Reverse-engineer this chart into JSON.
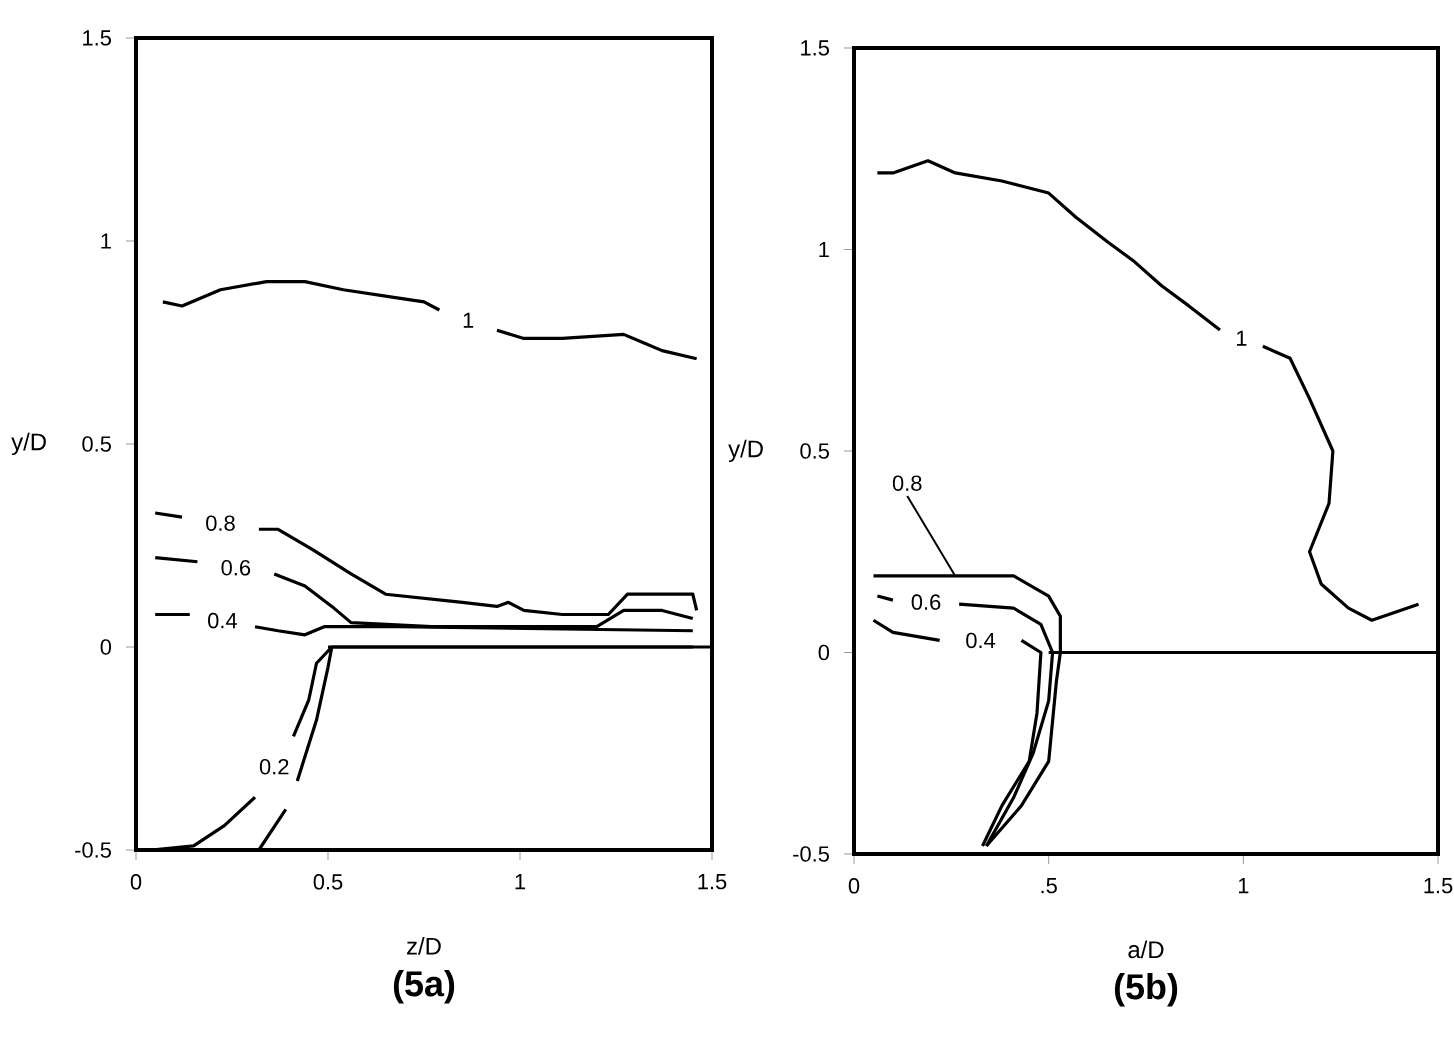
{
  "chart_data": [
    {
      "type": "line",
      "title": "(5a)",
      "xlabel": "z/D",
      "ylabel": "y/D",
      "xlim": [
        0,
        1.5
      ],
      "ylim": [
        -0.5,
        1.5
      ],
      "xticks": [
        0,
        0.5,
        1,
        1.5
      ],
      "yticks": [
        -0.5,
        0,
        0.5,
        1,
        1.5
      ],
      "grid": false,
      "legend": false,
      "marker": "none",
      "line_style": "solid",
      "series": [
        {
          "name": "1",
          "color": "#000000",
          "x": [
            0.07,
            0.12,
            0.22,
            0.34,
            0.44,
            0.54,
            0.68,
            0.75,
            0.79,
            0.85,
            0.94,
            1.01,
            1.11,
            1.27,
            1.32,
            1.37,
            1.46
          ],
          "values": [
            0.85,
            0.84,
            0.88,
            0.9,
            0.9,
            0.88,
            0.86,
            0.85,
            0.83,
            null,
            0.78,
            0.76,
            0.76,
            0.77,
            0.75,
            0.73,
            0.71
          ]
        },
        {
          "name": "0.8",
          "color": "#000000",
          "x": [
            0.05,
            0.12,
            0.24,
            0.32,
            0.37,
            0.46,
            0.56,
            0.65,
            0.85,
            0.94,
            0.97,
            1.01,
            1.11,
            1.23,
            1.28,
            1.45,
            1.46
          ],
          "values": [
            0.33,
            0.32,
            null,
            0.29,
            0.29,
            0.24,
            0.18,
            0.13,
            0.11,
            0.1,
            0.11,
            0.09,
            0.08,
            0.08,
            0.13,
            0.13,
            0.09
          ]
        },
        {
          "name": "0.6",
          "color": "#000000",
          "x": [
            0.05,
            0.16,
            0.27,
            0.36,
            0.44,
            0.51,
            0.56,
            0.77,
            1.2,
            1.27,
            1.37,
            1.45
          ],
          "values": [
            0.22,
            0.21,
            null,
            0.18,
            0.15,
            0.1,
            0.06,
            0.05,
            0.05,
            0.09,
            0.09,
            0.07
          ]
        },
        {
          "name": "0.4",
          "color": "#000000",
          "x": [
            0.05,
            0.14,
            0.23,
            0.31,
            0.37,
            0.44,
            0.49,
            0.68,
            1.45
          ],
          "values": [
            0.08,
            0.08,
            null,
            0.05,
            0.04,
            0.03,
            0.05,
            0.05,
            0.04
          ]
        },
        {
          "name": "0.2",
          "color": "#000000",
          "x": [
            0.04,
            0.15,
            0.23,
            0.31,
            0.34,
            0.41,
            0.45,
            0.47,
            0.51,
            1.45
          ],
          "values": [
            -0.5,
            -0.49,
            -0.44,
            -0.37,
            null,
            -0.22,
            -0.13,
            -0.04,
            0.0,
            0.0
          ]
        },
        {
          "color": "#000000",
          "x": [
            0.32,
            0.39,
            0.4,
            0.42,
            0.47,
            0.5,
            0.51
          ],
          "values": [
            -0.5,
            -0.4,
            null,
            -0.33,
            -0.18,
            -0.05,
            0.0
          ]
        },
        {
          "color": "#000000",
          "x": [
            0.5,
            1.5
          ],
          "values": [
            0.0,
            0.0
          ]
        }
      ]
    },
    {
      "type": "line",
      "title": "(5b)",
      "xlabel": "a/D",
      "ylabel": "y/D",
      "xlim": [
        0,
        1.5
      ],
      "ylim": [
        -0.5,
        1.5
      ],
      "xticks": [
        0,
        {
          "value": 0.5,
          "label": ".5"
        },
        1,
        1.5
      ],
      "yticks": [
        -0.5,
        0,
        0.5,
        1,
        1.5
      ],
      "grid": false,
      "legend": false,
      "marker": "none",
      "line_style": "solid",
      "series": [
        {
          "name": "1",
          "color": "#000000",
          "x": [
            0.06,
            0.1,
            0.19,
            0.26,
            0.38,
            0.5,
            0.57,
            0.65,
            0.72,
            0.79,
            0.86,
            0.94,
            1.0,
            1.05,
            1.12,
            1.17,
            1.23,
            1.22,
            1.17,
            1.2,
            1.27,
            1.33,
            1.39,
            1.45
          ],
          "values": [
            1.19,
            1.19,
            1.22,
            1.19,
            1.17,
            1.14,
            1.08,
            1.02,
            0.97,
            0.91,
            0.86,
            0.8,
            null,
            0.76,
            0.73,
            0.63,
            0.5,
            0.37,
            0.25,
            0.17,
            0.11,
            0.08,
            0.1,
            0.12
          ]
        },
        {
          "name": "0.8",
          "color": "#000000",
          "x": [
            0.05,
            0.26,
            0.41,
            0.5,
            0.53,
            0.53,
            0.52,
            0.5,
            0.43,
            0.34
          ],
          "values": [
            0.19,
            0.19,
            0.19,
            0.14,
            0.09,
            0.0,
            -0.07,
            -0.27,
            -0.38,
            -0.48
          ]
        },
        {
          "name": "0.6",
          "color": "#000000",
          "x": [
            0.06,
            0.1,
            0.15,
            0.27,
            0.41,
            0.48,
            0.51,
            0.5,
            0.46,
            0.41,
            0.34
          ],
          "values": [
            0.14,
            0.13,
            null,
            0.12,
            0.11,
            0.07,
            0.0,
            -0.12,
            -0.25,
            -0.36,
            -0.48
          ]
        },
        {
          "name": "0.4",
          "color": "#000000",
          "x": [
            0.05,
            0.1,
            0.22,
            0.29,
            0.43,
            0.48,
            0.47,
            0.45,
            0.38,
            0.33
          ],
          "values": [
            0.08,
            0.05,
            0.03,
            null,
            0.03,
            0.0,
            -0.15,
            -0.27,
            -0.38,
            -0.48
          ]
        },
        {
          "color": "#000000",
          "x": [
            0.5,
            1.5
          ],
          "values": [
            0.0,
            0.0
          ]
        }
      ]
    }
  ]
}
